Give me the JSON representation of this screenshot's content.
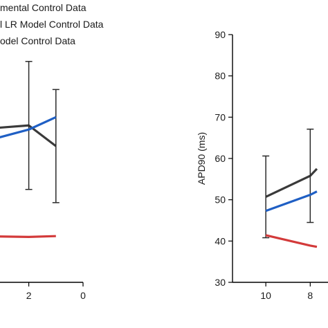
{
  "legend": {
    "items": [
      {
        "label": "mental Control Data",
        "color": "#3a3a3a"
      },
      {
        "label": "l LR Model Control Data",
        "color": "#1f5fc4"
      },
      {
        "label": "odel Control Data",
        "color": "#d33a3a"
      }
    ]
  },
  "chart_data": [
    {
      "type": "line",
      "title": "",
      "xlabel": "",
      "ylabel": "",
      "x_reversed": true,
      "x_ticks": [
        "2",
        "0"
      ],
      "xlim": [
        5,
        0
      ],
      "ylim": [
        30,
        90
      ],
      "series": [
        {
          "color": "#3a3a3a",
          "x": [
            4,
            2,
            1
          ],
          "y": [
            67,
            68,
            63
          ],
          "err": [
            null,
            15.5,
            13.7
          ]
        },
        {
          "color": "#1f5fc4",
          "x": [
            4,
            2,
            1
          ],
          "y": [
            63.5,
            67,
            70
          ],
          "err": [
            null,
            null,
            null
          ]
        },
        {
          "color": "#d33a3a",
          "x": [
            4,
            2,
            1
          ],
          "y": [
            41.2,
            41.0,
            41.2
          ],
          "err": [
            null,
            null,
            null
          ]
        }
      ]
    },
    {
      "type": "line",
      "title": "",
      "xlabel": "",
      "ylabel": "APD90 (ms)",
      "x_reversed": true,
      "x_ticks": [
        "10",
        "8"
      ],
      "y_ticks": [
        "30",
        "40",
        "50",
        "60",
        "70",
        "80",
        "90"
      ],
      "xlim": [
        11.5,
        7.2
      ],
      "ylim": [
        30,
        90
      ],
      "series": [
        {
          "color": "#3a3a3a",
          "x": [
            10,
            8,
            7.7
          ],
          "y": [
            50.7,
            55.8,
            57.5
          ],
          "err": [
            9.9,
            11.3,
            null
          ]
        },
        {
          "color": "#1f5fc4",
          "x": [
            10,
            8,
            7.7
          ],
          "y": [
            47.3,
            51.2,
            52
          ],
          "err": [
            null,
            null,
            null
          ]
        },
        {
          "color": "#d33a3a",
          "x": [
            10,
            8,
            7.7
          ],
          "y": [
            41.4,
            38.9,
            38.6
          ],
          "err": [
            null,
            null,
            null
          ]
        }
      ]
    }
  ]
}
